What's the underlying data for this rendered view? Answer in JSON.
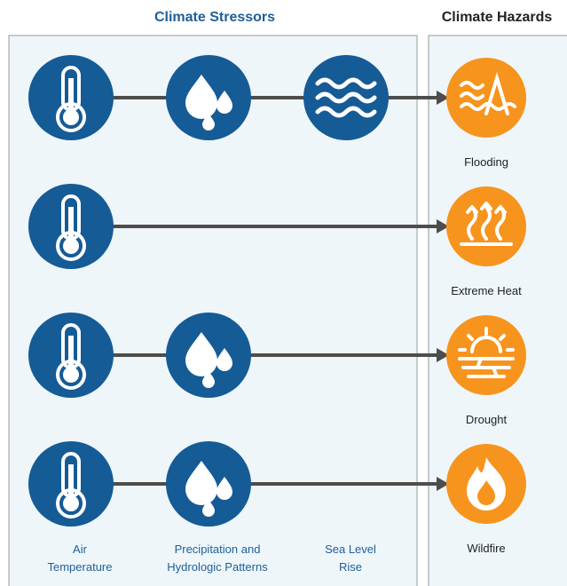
{
  "header": {
    "stressors_title": "Climate Stressors",
    "hazards_title": "Climate Hazards"
  },
  "stressors": [
    {
      "lines": [
        "Air",
        "Temperature"
      ]
    },
    {
      "lines": [
        "Precipitation and",
        "Hydrologic Patterns"
      ]
    },
    {
      "lines": [
        "Sea Level",
        "Rise"
      ]
    }
  ],
  "hazards": [
    {
      "label": "Flooding"
    },
    {
      "label": "Extreme Heat"
    },
    {
      "label": "Drought"
    },
    {
      "label": "Wildfire"
    }
  ]
}
